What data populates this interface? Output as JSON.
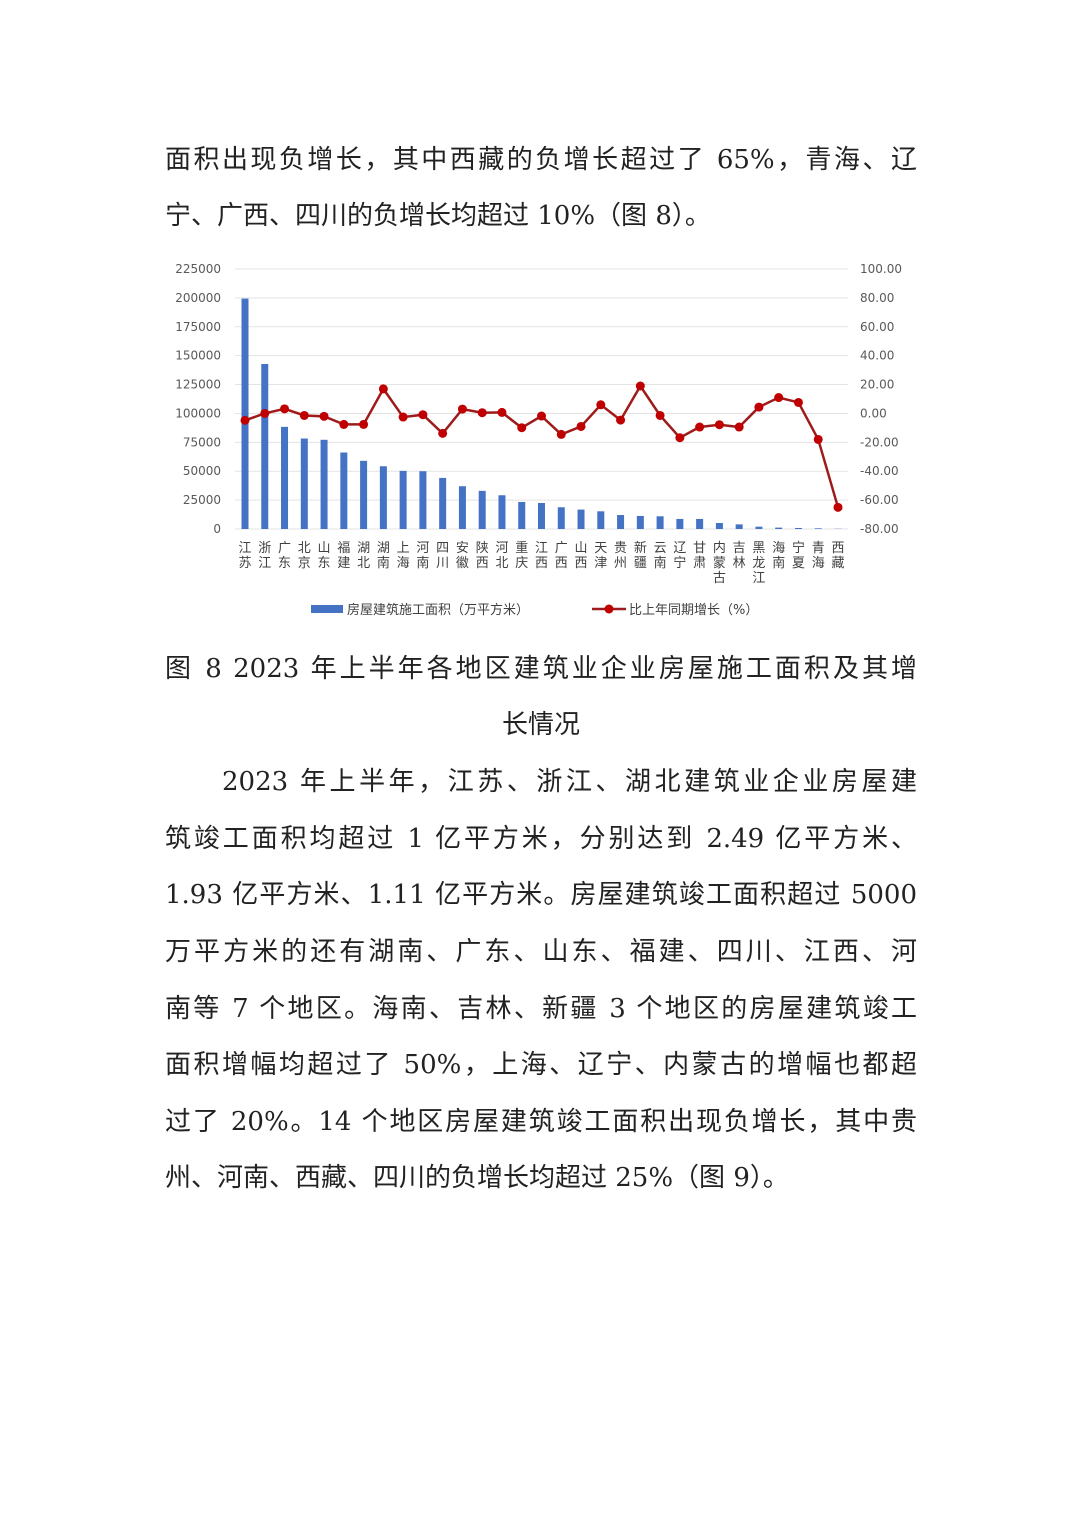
{
  "top_text": [
    "面积出现负增长，其中西藏的负增长超过了 65%，青海、辽",
    "宁、广西、四川的负增长均超过 10%（图 8）。"
  ],
  "caption": [
    "图 8 2023 年上半年各地区建筑业企业房屋施工面积及其增",
    "长情况"
  ],
  "body_text": [
    "2023 年上半年，江苏、浙江、湖北建筑业企业房屋建",
    "筑竣工面积均超过 1 亿平方米，分别达到 2.49 亿平方米、",
    "1.93 亿平方米、1.11 亿平方米。房屋建筑竣工面积超过 5000",
    "万平方米的还有湖南、广东、山东、福建、四川、江西、河",
    "南等 7 个地区。海南、吉林、新疆 3 个地区的房屋建筑竣工",
    "面积增幅均超过了 50%，上海、辽宁、内蒙古的增幅也都超",
    "过了 20%。14 个地区房屋建筑竣工面积出现负增长，其中贵",
    "州、河南、西藏、四川的负增长均超过 25%（图 9）。"
  ],
  "chart_data": {
    "type": "bar+line",
    "categories": [
      "江苏",
      "浙江",
      "广东",
      "北京",
      "山东",
      "福建",
      "湖北",
      "湖南",
      "上海",
      "河南",
      "四川",
      "安徽",
      "陕西",
      "河北",
      "重庆",
      "江西",
      "广西",
      "山西",
      "天津",
      "贵州",
      "新疆",
      "云南",
      "辽宁",
      "甘肃",
      "内蒙古",
      "吉林",
      "黑龙江",
      "海南",
      "宁夏",
      "青海",
      "西藏"
    ],
    "series": [
      {
        "name": "房屋建筑施工面积（万平方米）",
        "type": "bar",
        "axis": "left",
        "color": "#4472C4",
        "values": [
          199400,
          142800,
          88400,
          78300,
          77200,
          66200,
          59000,
          54300,
          50300,
          50000,
          44200,
          37000,
          33000,
          29200,
          23400,
          22500,
          18800,
          16800,
          15300,
          12100,
          11300,
          11000,
          8700,
          8700,
          5200,
          4000,
          2000,
          1200,
          900,
          600,
          200
        ]
      },
      {
        "name": "比上年同期增长（%）",
        "type": "line",
        "axis": "right",
        "color": "#C00000",
        "values": [
          -4.8,
          0.0,
          3.2,
          -1.4,
          -2.0,
          -7.6,
          -7.6,
          17.0,
          -2.5,
          -0.9,
          -13.8,
          3.0,
          0.5,
          0.7,
          -9.9,
          -1.8,
          -14.5,
          -9.0,
          6.0,
          -4.6,
          19.0,
          -1.4,
          -16.8,
          -9.4,
          -7.8,
          -9.4,
          4.4,
          11.0,
          7.6,
          -18.0,
          -65.0
        ]
      }
    ],
    "left_axis": {
      "range": [
        0,
        225000
      ],
      "ticks": [
        "0",
        "25000",
        "50000",
        "75000",
        "100000",
        "125000",
        "150000",
        "175000",
        "200000",
        "225000"
      ]
    },
    "right_axis": {
      "range": [
        -80,
        100
      ],
      "ticks": [
        "-80.00",
        "-60.00",
        "-40.00",
        "-20.00",
        "0.00",
        "20.00",
        "40.00",
        "60.00",
        "80.00",
        "100.00"
      ]
    },
    "grid": true,
    "legend": "bottom"
  }
}
